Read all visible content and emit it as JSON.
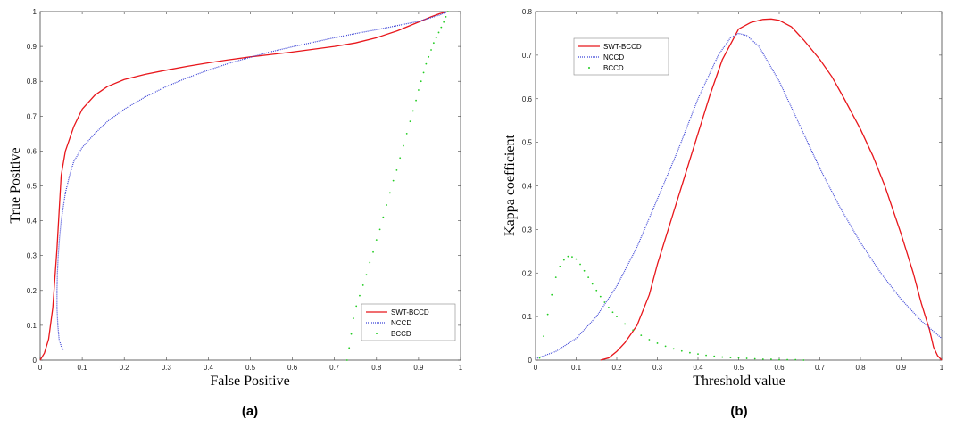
{
  "chart_data": [
    {
      "type": "line",
      "id": "roc",
      "caption": "(a)",
      "title": "",
      "xlabel": "False Positive",
      "ylabel": "True Positive",
      "xlim": [
        0,
        1
      ],
      "ylim": [
        0,
        1
      ],
      "xticks": [
        0,
        0.1,
        0.2,
        0.3,
        0.4,
        0.5,
        0.6,
        0.7,
        0.8,
        0.9,
        1
      ],
      "yticks": [
        0,
        0.1,
        0.2,
        0.3,
        0.4,
        0.5,
        0.6,
        0.7,
        0.8,
        0.9,
        1
      ],
      "xtick_labels": [
        "0",
        "0.1",
        "0.2",
        "0.3",
        "0.4",
        "0.5",
        "0.6",
        "0.7",
        "0.8",
        "0.9",
        "1"
      ],
      "ytick_labels": [
        "0",
        "0.1",
        "0.2",
        "0.3",
        "0.4",
        "0.5",
        "0.6",
        "0.7",
        "0.8",
        "0.9",
        "1"
      ],
      "legend_position": "bottom-right",
      "series": [
        {
          "name": "SWT-BCCD",
          "style": "solid",
          "color": "#e8161b",
          "x": [
            0,
            0.01,
            0.02,
            0.03,
            0.04,
            0.05,
            0.06,
            0.08,
            0.1,
            0.13,
            0.16,
            0.2,
            0.25,
            0.3,
            0.35,
            0.4,
            0.45,
            0.5,
            0.55,
            0.6,
            0.65,
            0.7,
            0.75,
            0.8,
            0.85,
            0.9,
            0.93,
            0.95,
            0.97
          ],
          "y": [
            0,
            0.02,
            0.06,
            0.15,
            0.32,
            0.53,
            0.6,
            0.67,
            0.72,
            0.76,
            0.785,
            0.805,
            0.82,
            0.832,
            0.843,
            0.853,
            0.862,
            0.87,
            0.877,
            0.884,
            0.892,
            0.9,
            0.91,
            0.925,
            0.945,
            0.97,
            0.985,
            0.994,
            1.0
          ]
        },
        {
          "name": "NCCD",
          "style": "dotted",
          "color": "#3b43d6",
          "x": [
            0.055,
            0.05,
            0.045,
            0.042,
            0.04,
            0.04,
            0.041,
            0.043,
            0.046,
            0.05,
            0.055,
            0.06,
            0.07,
            0.08,
            0.1,
            0.13,
            0.16,
            0.2,
            0.25,
            0.3,
            0.35,
            0.4,
            0.45,
            0.5,
            0.55,
            0.6,
            0.65,
            0.7,
            0.75,
            0.8,
            0.85,
            0.9,
            0.95,
            0.97
          ],
          "y": [
            0.03,
            0.04,
            0.06,
            0.1,
            0.15,
            0.2,
            0.25,
            0.3,
            0.35,
            0.4,
            0.44,
            0.48,
            0.53,
            0.57,
            0.61,
            0.65,
            0.685,
            0.72,
            0.755,
            0.785,
            0.81,
            0.832,
            0.852,
            0.869,
            0.885,
            0.899,
            0.912,
            0.925,
            0.937,
            0.948,
            0.96,
            0.972,
            0.99,
            1.0
          ]
        },
        {
          "name": "BCCD",
          "style": "points",
          "color": "#22cc22",
          "x": [
            0.73,
            0.735,
            0.74,
            0.745,
            0.752,
            0.76,
            0.768,
            0.776,
            0.784,
            0.792,
            0.8,
            0.808,
            0.816,
            0.824,
            0.832,
            0.84,
            0.848,
            0.856,
            0.864,
            0.872,
            0.88,
            0.887,
            0.894,
            0.9,
            0.906,
            0.912,
            0.918,
            0.924,
            0.93,
            0.936,
            0.942,
            0.948,
            0.954,
            0.96,
            0.965,
            0.97
          ],
          "y": [
            0.0,
            0.035,
            0.075,
            0.12,
            0.155,
            0.185,
            0.215,
            0.245,
            0.28,
            0.31,
            0.345,
            0.375,
            0.41,
            0.445,
            0.48,
            0.515,
            0.545,
            0.58,
            0.615,
            0.65,
            0.685,
            0.715,
            0.745,
            0.775,
            0.8,
            0.825,
            0.85,
            0.87,
            0.89,
            0.91,
            0.925,
            0.94,
            0.955,
            0.97,
            0.985,
            1.0
          ]
        }
      ]
    },
    {
      "type": "line",
      "id": "kappa",
      "caption": "(b)",
      "title": "",
      "xlabel": "Threshold value",
      "ylabel": "Kappa coefficient",
      "xlim": [
        0,
        1
      ],
      "ylim": [
        0,
        0.8
      ],
      "xticks": [
        0,
        0.1,
        0.2,
        0.3,
        0.4,
        0.5,
        0.6,
        0.7,
        0.8,
        0.9,
        1
      ],
      "yticks": [
        0,
        0.1,
        0.2,
        0.3,
        0.4,
        0.5,
        0.6,
        0.7,
        0.8
      ],
      "xtick_labels": [
        "0",
        "0.1",
        "0.2",
        "0.3",
        "0.4",
        "0.5",
        "0.6",
        "0.7",
        "0.8",
        "0.9",
        "1"
      ],
      "ytick_labels": [
        "0",
        "0.1",
        "0.2",
        "0.3",
        "0.4",
        "0.5",
        "0.6",
        "0.7",
        "0.8"
      ],
      "legend_position": "top-left",
      "series": [
        {
          "name": "SWT-BCCD",
          "style": "solid",
          "color": "#e8161b",
          "x": [
            0.16,
            0.18,
            0.2,
            0.22,
            0.25,
            0.28,
            0.3,
            0.33,
            0.36,
            0.4,
            0.43,
            0.46,
            0.5,
            0.53,
            0.56,
            0.58,
            0.6,
            0.63,
            0.66,
            0.7,
            0.73,
            0.76,
            0.8,
            0.83,
            0.86,
            0.9,
            0.93,
            0.95,
            0.97,
            0.98,
            0.99,
            1.0
          ],
          "y": [
            0,
            0.005,
            0.02,
            0.04,
            0.08,
            0.15,
            0.22,
            0.31,
            0.4,
            0.52,
            0.61,
            0.69,
            0.76,
            0.775,
            0.782,
            0.783,
            0.78,
            0.765,
            0.735,
            0.69,
            0.65,
            0.6,
            0.53,
            0.47,
            0.4,
            0.29,
            0.2,
            0.13,
            0.07,
            0.03,
            0.01,
            0
          ]
        },
        {
          "name": "NCCD",
          "style": "dotted",
          "color": "#3b43d6",
          "x": [
            0,
            0.05,
            0.1,
            0.15,
            0.2,
            0.25,
            0.3,
            0.35,
            0.4,
            0.45,
            0.48,
            0.5,
            0.52,
            0.55,
            0.6,
            0.65,
            0.7,
            0.75,
            0.8,
            0.85,
            0.9,
            0.95,
            1.0
          ],
          "y": [
            0.003,
            0.02,
            0.05,
            0.1,
            0.17,
            0.26,
            0.37,
            0.48,
            0.6,
            0.7,
            0.74,
            0.75,
            0.745,
            0.72,
            0.64,
            0.54,
            0.44,
            0.35,
            0.27,
            0.2,
            0.14,
            0.09,
            0.05
          ]
        },
        {
          "name": "BCCD",
          "style": "points",
          "color": "#22cc22",
          "x": [
            0.01,
            0.02,
            0.03,
            0.04,
            0.05,
            0.06,
            0.07,
            0.08,
            0.09,
            0.1,
            0.11,
            0.12,
            0.13,
            0.14,
            0.15,
            0.16,
            0.17,
            0.18,
            0.19,
            0.2,
            0.22,
            0.24,
            0.26,
            0.28,
            0.3,
            0.32,
            0.34,
            0.36,
            0.38,
            0.4,
            0.42,
            0.44,
            0.46,
            0.48,
            0.5,
            0.52,
            0.54,
            0.56,
            0.58,
            0.6,
            0.62,
            0.64,
            0.66
          ],
          "y": [
            0.005,
            0.055,
            0.105,
            0.15,
            0.19,
            0.215,
            0.23,
            0.238,
            0.237,
            0.232,
            0.22,
            0.205,
            0.19,
            0.175,
            0.16,
            0.146,
            0.133,
            0.121,
            0.11,
            0.1,
            0.083,
            0.069,
            0.057,
            0.047,
            0.039,
            0.032,
            0.026,
            0.021,
            0.017,
            0.014,
            0.011,
            0.009,
            0.007,
            0.006,
            0.005,
            0.004,
            0.003,
            0.002,
            0.002,
            0.001,
            0.001,
            0.001,
            0
          ]
        }
      ]
    }
  ]
}
